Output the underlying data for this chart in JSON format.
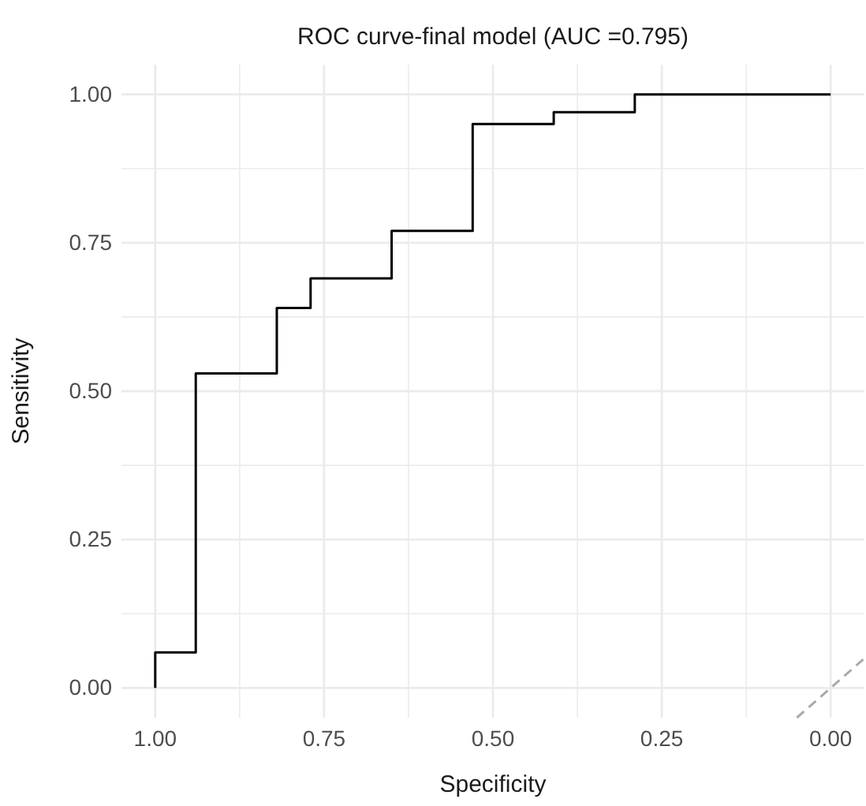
{
  "chart_data": {
    "type": "line",
    "title": "ROC curve-final model (AUC =0.795)",
    "xlabel": "Specificity",
    "ylabel": "Sensitivity",
    "xlim": [
      1.05,
      -0.05
    ],
    "ylim": [
      -0.05,
      1.05
    ],
    "xticks": [
      {
        "value": 1,
        "label": "1.00"
      },
      {
        "value": 0.875,
        "label": null
      },
      {
        "value": 0.75,
        "label": "0.75"
      },
      {
        "value": 0.625,
        "label": null
      },
      {
        "value": 0.5,
        "label": "0.50"
      },
      {
        "value": 0.375,
        "label": null
      },
      {
        "value": 0.25,
        "label": "0.25"
      },
      {
        "value": 0.125,
        "label": null
      },
      {
        "value": 0,
        "label": "0.00"
      }
    ],
    "yticks": [
      {
        "value": 0,
        "label": "0.00"
      },
      {
        "value": 0.125,
        "label": null
      },
      {
        "value": 0.25,
        "label": "0.25"
      },
      {
        "value": 0.375,
        "label": null
      },
      {
        "value": 0.5,
        "label": "0.50"
      },
      {
        "value": 0.625,
        "label": null
      },
      {
        "value": 0.75,
        "label": "0.75"
      },
      {
        "value": 0.875,
        "label": null
      },
      {
        "value": 1,
        "label": "1.00"
      }
    ],
    "grid": true,
    "marker": "none",
    "series": [
      {
        "color": "#000000",
        "line_style": "solid",
        "x": [
          1,
          1,
          0.94,
          0.94,
          0.82,
          0.82,
          0.77,
          0.77,
          0.65,
          0.65,
          0.53,
          0.53,
          0.41,
          0.41,
          0.29,
          0.29,
          0
        ],
        "values": [
          0,
          0.06,
          0.06,
          0.53,
          0.53,
          0.64,
          0.64,
          0.69,
          0.69,
          0.77,
          0.77,
          0.95,
          0.95,
          0.97,
          0.97,
          1,
          1
        ]
      },
      {
        "color": "#aaaaaa",
        "line_style": "dashed",
        "x": [
          0.05,
          -0.05
        ],
        "values": [
          -0.05,
          0.05
        ]
      }
    ]
  }
}
